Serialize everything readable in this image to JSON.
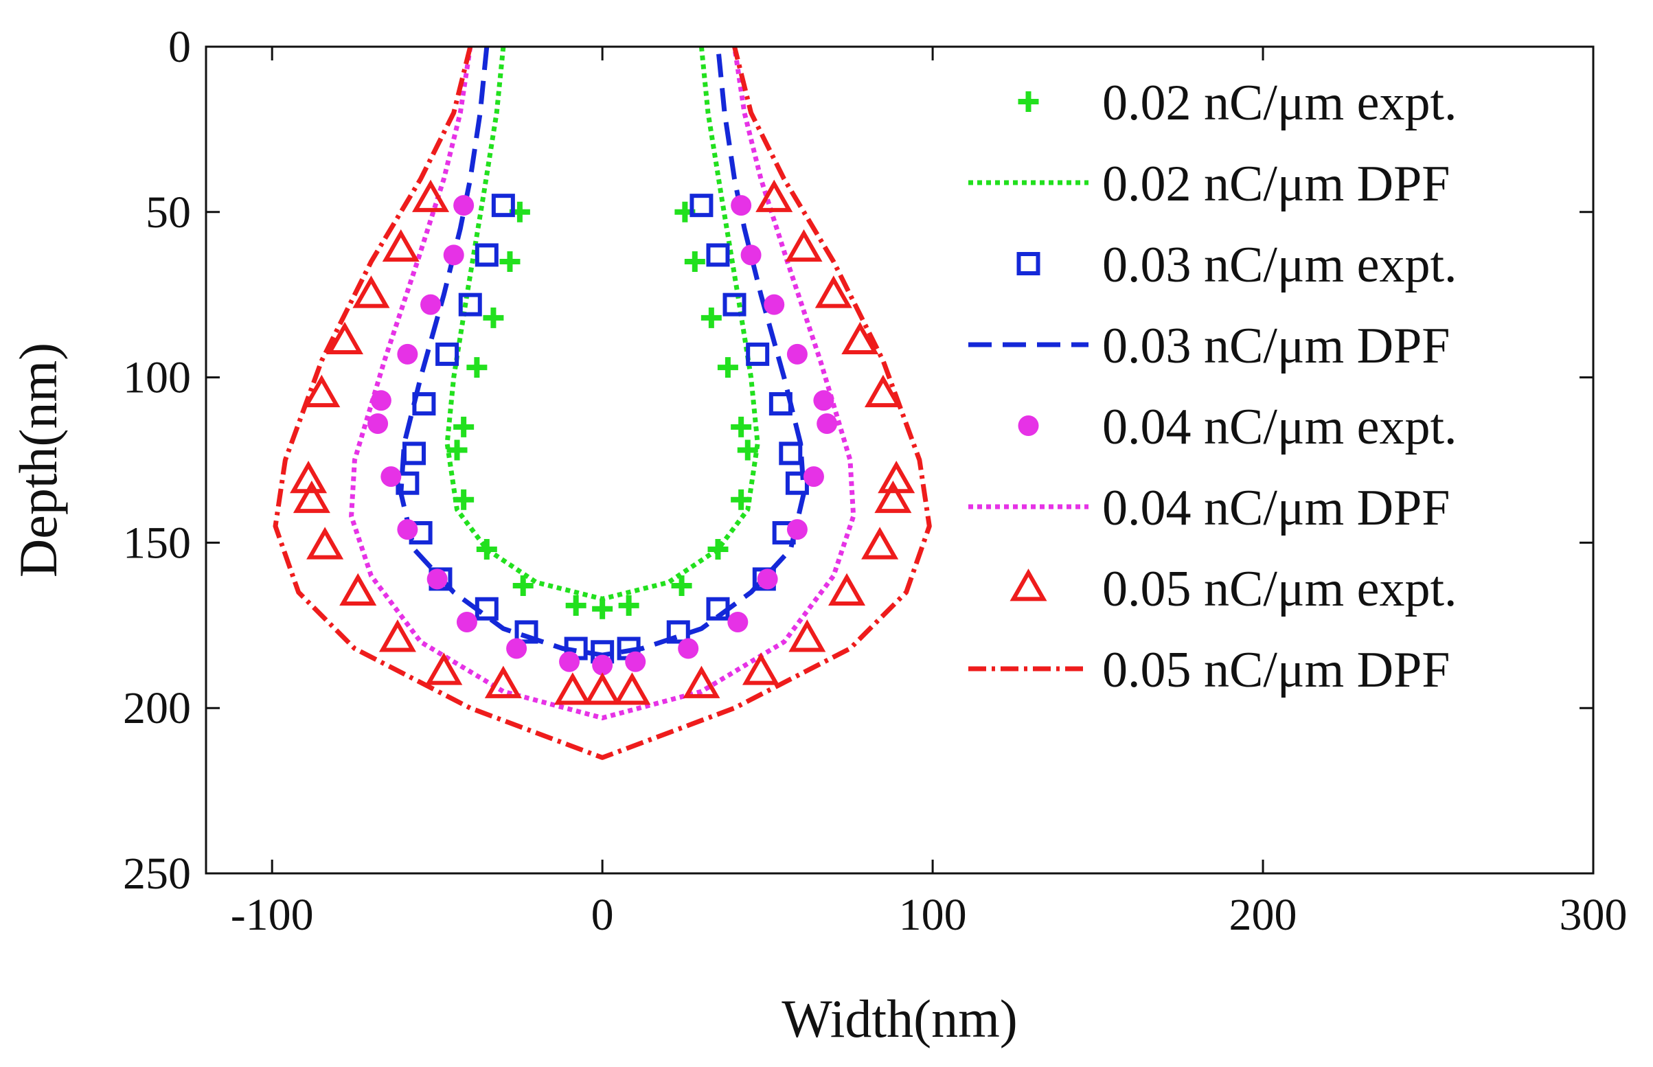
{
  "chart_data": {
    "type": "scatter",
    "title": "",
    "xlabel": "Width(nm)",
    "ylabel": "Depth(nm)",
    "xlim": [
      -120,
      300
    ],
    "ylim": [
      0,
      250
    ],
    "y_reversed": true,
    "xticks": [
      -100,
      0,
      100,
      200,
      300
    ],
    "yticks": [
      0,
      50,
      100,
      150,
      200,
      250
    ],
    "legend_position": "top-right",
    "series": [
      {
        "name": "0.02 nC/μm expt.",
        "kind": "markers",
        "marker": "plus",
        "color": "#22e01e",
        "points": [
          [
            -25,
            50
          ],
          [
            -28,
            65
          ],
          [
            -33,
            82
          ],
          [
            -38,
            97
          ],
          [
            -42,
            115
          ],
          [
            -44,
            122
          ],
          [
            -42,
            137
          ],
          [
            -35,
            152
          ],
          [
            -24,
            163
          ],
          [
            -8,
            169
          ],
          [
            8,
            169
          ],
          [
            24,
            163
          ],
          [
            35,
            152
          ],
          [
            42,
            137
          ],
          [
            44,
            122
          ],
          [
            42,
            115
          ],
          [
            38,
            97
          ],
          [
            33,
            82
          ],
          [
            28,
            65
          ],
          [
            25,
            50
          ],
          [
            0,
            170
          ]
        ]
      },
      {
        "name": "0.02 nC/μm DPF",
        "kind": "line",
        "dash": "dotted",
        "color": "#22e01e",
        "points": [
          [
            -30,
            0
          ],
          [
            -32,
            20
          ],
          [
            -36,
            45
          ],
          [
            -41,
            75
          ],
          [
            -45,
            100
          ],
          [
            -47,
            120
          ],
          [
            -44,
            140
          ],
          [
            -35,
            152
          ],
          [
            -20,
            162
          ],
          [
            0,
            167
          ],
          [
            20,
            162
          ],
          [
            35,
            152
          ],
          [
            44,
            140
          ],
          [
            47,
            120
          ],
          [
            45,
            100
          ],
          [
            41,
            75
          ],
          [
            36,
            45
          ],
          [
            32,
            20
          ],
          [
            30,
            0
          ]
        ]
      },
      {
        "name": "0.03 nC/μm expt.",
        "kind": "markers",
        "marker": "square",
        "color": "#1428d8",
        "points": [
          [
            -30,
            48
          ],
          [
            -35,
            63
          ],
          [
            -40,
            78
          ],
          [
            -47,
            93
          ],
          [
            -54,
            108
          ],
          [
            -57,
            123
          ],
          [
            -59,
            132
          ],
          [
            -55,
            147
          ],
          [
            -49,
            161
          ],
          [
            -35,
            170
          ],
          [
            -23,
            177
          ],
          [
            -8,
            182
          ],
          [
            0,
            183
          ],
          [
            8,
            182
          ],
          [
            23,
            177
          ],
          [
            35,
            170
          ],
          [
            49,
            161
          ],
          [
            55,
            147
          ],
          [
            59,
            132
          ],
          [
            57,
            123
          ],
          [
            54,
            108
          ],
          [
            47,
            93
          ],
          [
            40,
            78
          ],
          [
            35,
            63
          ],
          [
            30,
            48
          ]
        ]
      },
      {
        "name": "0.03 nC/μm DPF",
        "kind": "line",
        "dash": "dashed",
        "color": "#1428d8",
        "points": [
          [
            -35,
            0
          ],
          [
            -37,
            20
          ],
          [
            -40,
            40
          ],
          [
            -43,
            55
          ],
          [
            -48,
            75
          ],
          [
            -55,
            100
          ],
          [
            -60,
            120
          ],
          [
            -61,
            135
          ],
          [
            -57,
            152
          ],
          [
            -45,
            165
          ],
          [
            -30,
            176
          ],
          [
            -12,
            182
          ],
          [
            0,
            184
          ],
          [
            12,
            182
          ],
          [
            30,
            176
          ],
          [
            45,
            165
          ],
          [
            57,
            152
          ],
          [
            61,
            135
          ],
          [
            60,
            120
          ],
          [
            55,
            100
          ],
          [
            48,
            75
          ],
          [
            43,
            55
          ],
          [
            40,
            40
          ],
          [
            37,
            20
          ],
          [
            35,
            0
          ]
        ]
      },
      {
        "name": "0.04 nC/μm expt.",
        "kind": "markers",
        "marker": "circle",
        "color": "#e632e6",
        "points": [
          [
            -42,
            48
          ],
          [
            -45,
            63
          ],
          [
            -52,
            78
          ],
          [
            -59,
            93
          ],
          [
            -67,
            107
          ],
          [
            -68,
            114
          ],
          [
            -64,
            130
          ],
          [
            -59,
            146
          ],
          [
            -50,
            161
          ],
          [
            -41,
            174
          ],
          [
            -26,
            182
          ],
          [
            -10,
            186
          ],
          [
            0,
            187
          ],
          [
            10,
            186
          ],
          [
            26,
            182
          ],
          [
            41,
            174
          ],
          [
            50,
            161
          ],
          [
            59,
            146
          ],
          [
            64,
            130
          ],
          [
            68,
            114
          ],
          [
            67,
            107
          ],
          [
            59,
            93
          ],
          [
            52,
            78
          ],
          [
            45,
            63
          ],
          [
            42,
            48
          ]
        ]
      },
      {
        "name": "0.04 nC/μm DPF",
        "kind": "line",
        "dash": "dotted",
        "color": "#e632e6",
        "points": [
          [
            -40,
            0
          ],
          [
            -43,
            20
          ],
          [
            -48,
            40
          ],
          [
            -56,
            65
          ],
          [
            -66,
            95
          ],
          [
            -75,
            125
          ],
          [
            -76,
            142
          ],
          [
            -70,
            160
          ],
          [
            -55,
            180
          ],
          [
            -30,
            195
          ],
          [
            0,
            203
          ],
          [
            30,
            195
          ],
          [
            55,
            180
          ],
          [
            70,
            160
          ],
          [
            76,
            142
          ],
          [
            75,
            125
          ],
          [
            66,
            95
          ],
          [
            56,
            65
          ],
          [
            48,
            40
          ],
          [
            43,
            20
          ],
          [
            40,
            0
          ]
        ]
      },
      {
        "name": "0.05 nC/μm expt.",
        "kind": "markers",
        "marker": "triangle",
        "color": "#ee1c1c",
        "points": [
          [
            -52,
            46
          ],
          [
            -61,
            61
          ],
          [
            -70,
            75
          ],
          [
            -78,
            89
          ],
          [
            -85,
            105
          ],
          [
            -89,
            131
          ],
          [
            -88,
            137
          ],
          [
            -84,
            151
          ],
          [
            -74,
            165
          ],
          [
            -62,
            179
          ],
          [
            -48,
            189
          ],
          [
            -30,
            193
          ],
          [
            -9,
            195
          ],
          [
            0,
            195
          ],
          [
            9,
            195
          ],
          [
            30,
            193
          ],
          [
            48,
            189
          ],
          [
            62,
            179
          ],
          [
            74,
            165
          ],
          [
            84,
            151
          ],
          [
            88,
            137
          ],
          [
            89,
            131
          ],
          [
            85,
            105
          ],
          [
            78,
            89
          ],
          [
            70,
            75
          ],
          [
            61,
            61
          ],
          [
            52,
            46
          ]
        ]
      },
      {
        "name": "0.05 nC/μm DPF",
        "kind": "line",
        "dash": "dash-dot",
        "color": "#ee1c1c",
        "points": [
          [
            -40,
            0
          ],
          [
            -45,
            20
          ],
          [
            -55,
            40
          ],
          [
            -70,
            65
          ],
          [
            -85,
            95
          ],
          [
            -96,
            125
          ],
          [
            -99,
            145
          ],
          [
            -92,
            165
          ],
          [
            -75,
            182
          ],
          [
            -40,
            200
          ],
          [
            0,
            215
          ],
          [
            40,
            200
          ],
          [
            75,
            182
          ],
          [
            92,
            165
          ],
          [
            99,
            145
          ],
          [
            96,
            125
          ],
          [
            85,
            95
          ],
          [
            70,
            65
          ],
          [
            55,
            40
          ],
          [
            45,
            20
          ],
          [
            40,
            0
          ]
        ]
      }
    ]
  }
}
